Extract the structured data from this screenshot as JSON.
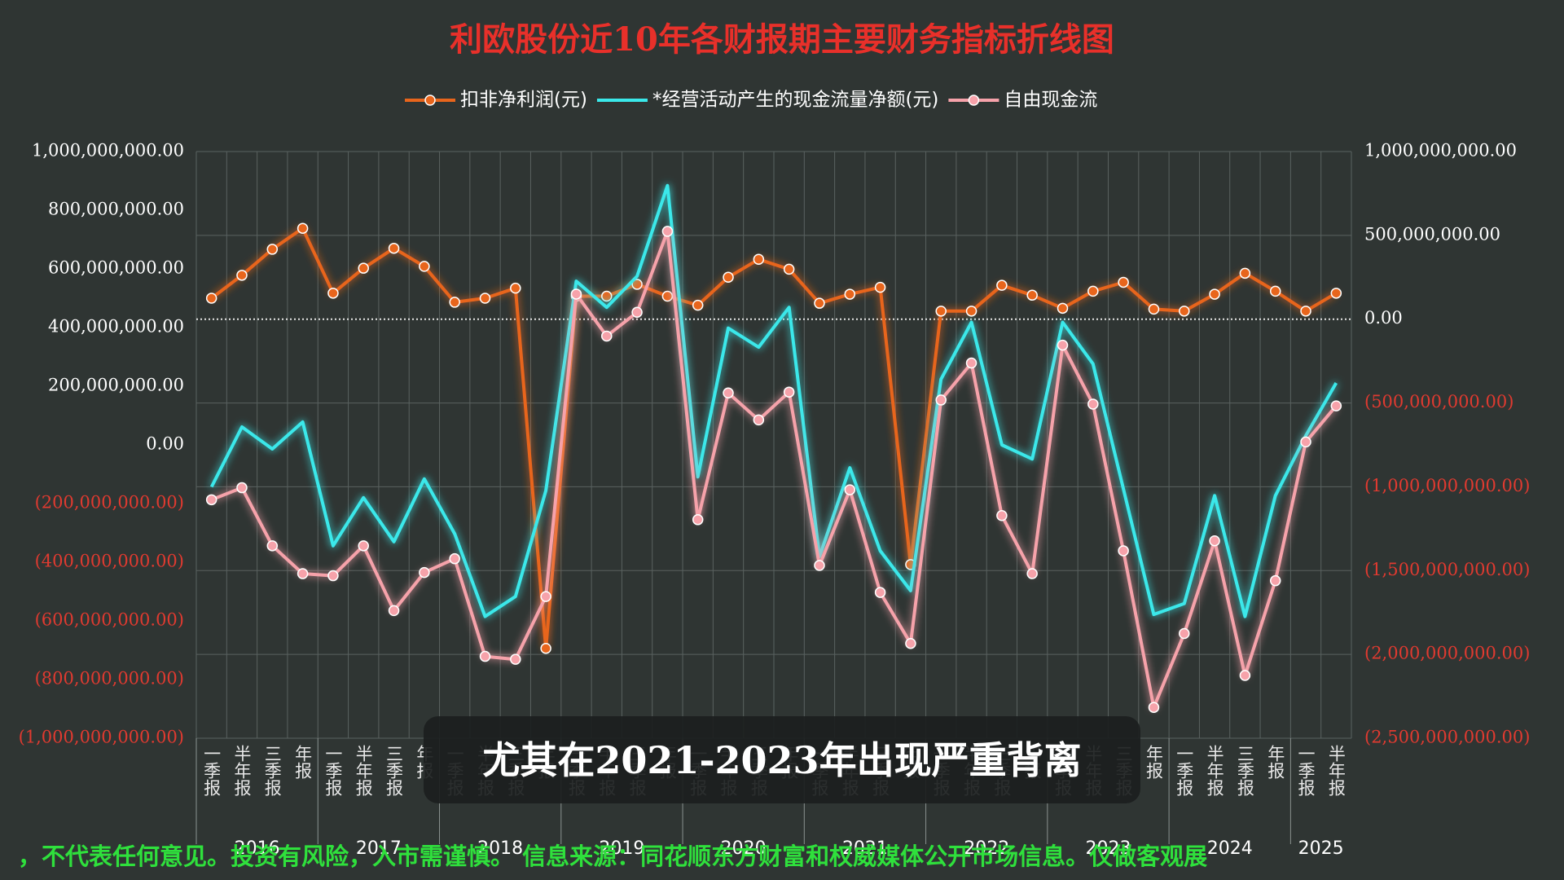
{
  "chart_data": {
    "type": "line",
    "title": "利欧股份近10年各财报期主要财务指标折线图",
    "categories": [
      "一季报",
      "半年报",
      "三季报",
      "年报",
      "一季报",
      "半年报",
      "三季报",
      "年报",
      "一季报",
      "半年报",
      "三季报",
      "年报",
      "一季报",
      "半年报",
      "三季报",
      "年报",
      "一季报",
      "半年报",
      "三季报",
      "年报",
      "一季报",
      "半年报",
      "三季报",
      "年报",
      "一季报",
      "半年报",
      "三季报",
      "年报",
      "一季报",
      "半年报",
      "三季报",
      "年报",
      "一季报",
      "半年报",
      "三季报",
      "年报",
      "一季报",
      "半年报"
    ],
    "year_labels": [
      "2016",
      "2017",
      "2018",
      "2019",
      "2020",
      "2021",
      "2022",
      "2023",
      "2024",
      "2025"
    ],
    "series": [
      {
        "name": "扣非净利润(元)",
        "color": "#e8651c",
        "axis": "y2",
        "markers": true,
        "values": [
          125000000,
          262000000,
          417000000,
          542000000,
          155000000,
          304000000,
          423000000,
          315000000,
          101000000,
          125000000,
          185000000,
          -1964000000,
          137000000,
          137000000,
          208000000,
          137000000,
          83000000,
          250000000,
          357000000,
          298000000,
          95000000,
          149000000,
          190000000,
          -1464000000,
          48000000,
          48000000,
          202000000,
          143000000,
          65000000,
          167000000,
          220000000,
          60000000,
          48000000,
          149000000,
          274000000,
          167000000,
          48000000,
          155000000
        ]
      },
      {
        "name": "*经营活动产生的现金流量净额(元)",
        "color": "#3ae8ea",
        "markers": false,
        "values": [
          -143000000,
          61000000,
          -14000000,
          78000000,
          -344000000,
          -180000000,
          -330000000,
          -116000000,
          -303000000,
          -585000000,
          -517000000,
          -156000000,
          558000000,
          469000000,
          575000000,
          884000000,
          -109000000,
          398000000,
          333000000,
          469000000,
          -381000000,
          -78000000,
          -361000000,
          -497000000,
          224000000,
          418000000,
          0,
          -48000000,
          418000000,
          276000000,
          -150000000,
          -578000000,
          -541000000,
          -173000000,
          -585000000,
          -173000000,
          31000000,
          211000000
        ]
      },
      {
        "name": "自由现金流",
        "color": "#f6a2aa",
        "markers": true,
        "values": [
          -187000000,
          -146000000,
          -344000000,
          -439000000,
          -446000000,
          -344000000,
          -565000000,
          -435000000,
          -388000000,
          -721000000,
          -731000000,
          -517000000,
          514000000,
          371000000,
          452000000,
          728000000,
          -255000000,
          177000000,
          85000000,
          180000000,
          -411000000,
          -153000000,
          -503000000,
          -677000000,
          153000000,
          279000000,
          -241000000,
          -439000000,
          340000000,
          139000000,
          -361000000,
          -895000000,
          -643000000,
          -327000000,
          -786000000,
          -463000000,
          10000000,
          133000000
        ]
      }
    ],
    "ylim": [
      -1000000000,
      1000000000
    ],
    "yticks": [
      {
        "value": -1000000000,
        "label": "(1,000,000,000.00)"
      },
      {
        "value": -800000000,
        "label": "(800,000,000.00)"
      },
      {
        "value": -600000000,
        "label": "(600,000,000.00)"
      },
      {
        "value": -400000000,
        "label": "(400,000,000.00)"
      },
      {
        "value": -200000000,
        "label": "(200,000,000.00)"
      },
      {
        "value": 0,
        "label": "0.00"
      },
      {
        "value": 200000000,
        "label": "200,000,000.00"
      },
      {
        "value": 400000000,
        "label": "400,000,000.00"
      },
      {
        "value": 600000000,
        "label": "600,000,000.00"
      },
      {
        "value": 800000000,
        "label": "800,000,000.00"
      },
      {
        "value": 1000000000,
        "label": "1,000,000,000.00"
      }
    ],
    "y2lim": [
      -2500000000,
      1000000000
    ],
    "y2ticks": [
      {
        "value": -2500000000,
        "label": "(2,500,000,000.00)"
      },
      {
        "value": -2000000000,
        "label": "(2,000,000,000.00)"
      },
      {
        "value": -1500000000,
        "label": "(1,500,000,000.00)"
      },
      {
        "value": -1000000000,
        "label": "(1,000,000,000.00)"
      },
      {
        "value": -500000000,
        "label": "(500,000,000.00)"
      },
      {
        "value": 0,
        "label": "0.00"
      },
      {
        "value": 500000000,
        "label": "500,000,000.00"
      },
      {
        "value": 1000000000,
        "label": "1,000,000,000.00"
      }
    ],
    "grid": true,
    "legend": "top",
    "title_color": "#e8302a",
    "tick_color": "#ffffff",
    "negative_tick_color": "#e03a30",
    "annotations": [
      "尤其在2021-2023年出现严重背离",
      "，不代表任何意见。投资有风险，入市需谨慎。  信息来源：同花顺东方财富和权威媒体公开市场信息。仅做客观展"
    ]
  }
}
